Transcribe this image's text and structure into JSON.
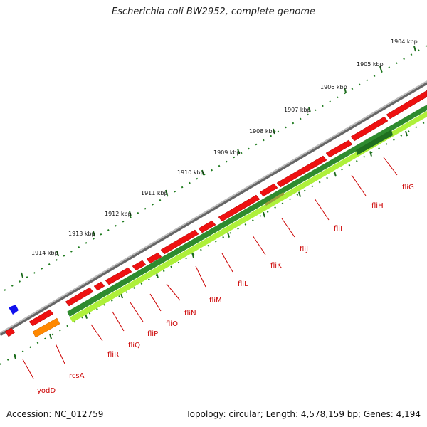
{
  "title": "Escherichia coli BW2952, complete genome",
  "footer": {
    "accession": "Accession: NC_012759",
    "topology": "Topology: circular; Length: 4,578,159 bp; Genes: 4,194"
  },
  "scale_labels": [
    "1904 kbp",
    "1905 kbp",
    "1906 kbp",
    "1907 kbp",
    "1908 kbp",
    "1909 kbp",
    "1910 kbp",
    "1911 kbp",
    "1912 kbp",
    "1913 kbp",
    "1914 kbp"
  ],
  "gene_labels": [
    "fliG",
    "fliH",
    "fliI",
    "fliJ",
    "fliK",
    "fliL",
    "fliM",
    "fliN",
    "fliO",
    "fliP",
    "fliQ",
    "fliR",
    "rcsA",
    "yodD"
  ],
  "colors": {
    "backbone": "#8a8a8a",
    "forward_gene": "#ee1111",
    "reverse_gene": "#2e8b2e",
    "reverse_highlight": "#aef03a",
    "orange_gene": "#ff8800",
    "blue_feature": "#1010ee",
    "tick": "#2a7a2a",
    "label": "#cc0000"
  }
}
